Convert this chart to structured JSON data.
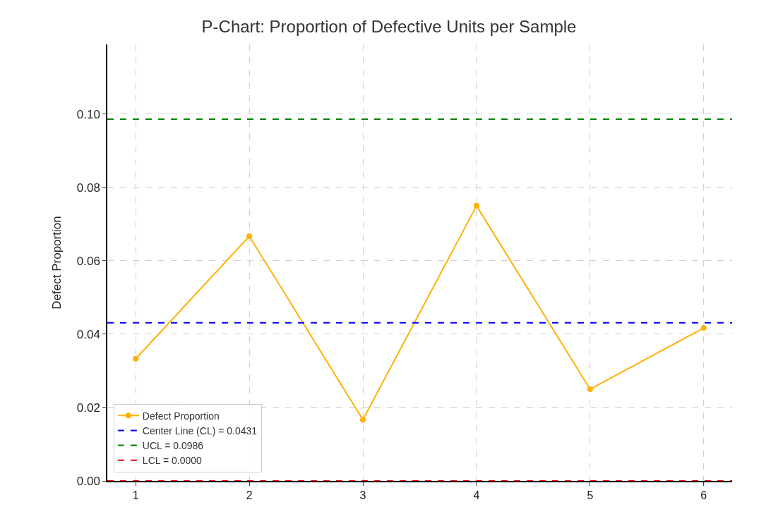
{
  "chart_data": {
    "type": "line",
    "title": "P-Chart: Proportion of Defective Units per Sample",
    "ylabel": "Defect Proportion",
    "x": [
      1,
      2,
      3,
      4,
      5,
      6
    ],
    "series": [
      {
        "name": "Defect Proportion",
        "color": "#ffb000",
        "values": [
          0.0333,
          0.0667,
          0.0167,
          0.075,
          0.025,
          0.0417
        ]
      }
    ],
    "ref_lines": [
      {
        "axis": "y",
        "value": 0.0431,
        "label": "Center Line (CL) = 0.0431",
        "color": "#0000ff",
        "line_style": "dashed"
      },
      {
        "axis": "y",
        "value": 0.0986,
        "label": "UCL = 0.0986",
        "color": "#008000",
        "line_style": "dashed"
      },
      {
        "axis": "y",
        "value": 0,
        "label": "LCL = 0.0000",
        "color": "#ff0000",
        "line_style": "dashed"
      }
    ],
    "xlim": [
      0.75,
      6.25
    ],
    "xticks": [
      1,
      2,
      3,
      4,
      5,
      6
    ],
    "ylim": [
      0,
      0.119
    ],
    "yticks": [
      {
        "value": 0,
        "label": "0.00"
      },
      {
        "value": 0.02,
        "label": "0.02"
      },
      {
        "value": 0.04,
        "label": "0.04"
      },
      {
        "value": 0.06,
        "label": "0.06"
      },
      {
        "value": 0.08,
        "label": "0.08"
      },
      {
        "value": 0.1,
        "label": "0.10"
      }
    ],
    "grid": true,
    "legend": "bottom left",
    "marker": "circle",
    "line_style": "solid"
  }
}
